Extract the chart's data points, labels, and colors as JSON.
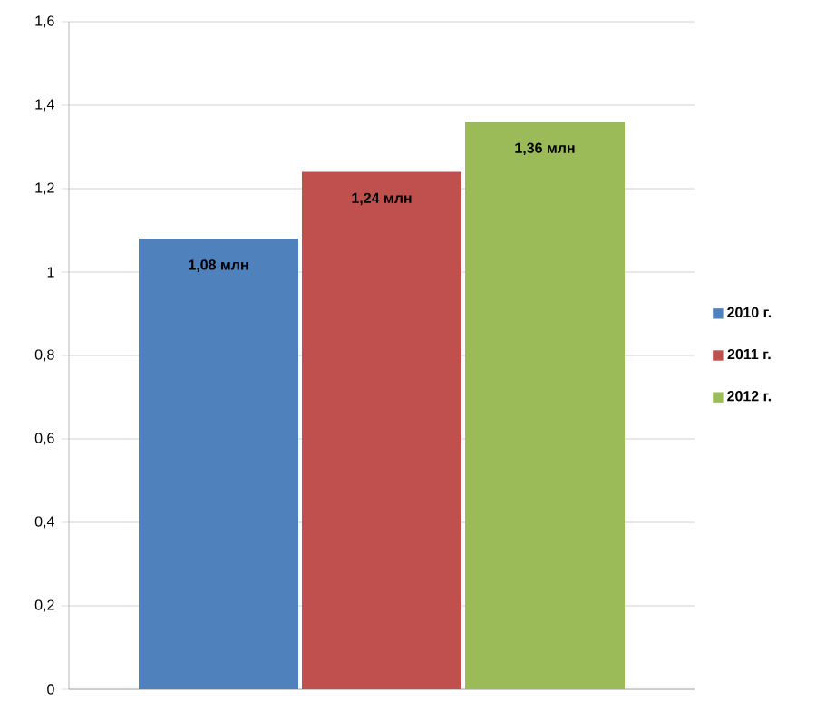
{
  "chart_data": {
    "type": "bar",
    "categories": [
      null
    ],
    "series": [
      {
        "name": "2010 г.",
        "color": "#4f81bd",
        "values": [
          1.08
        ],
        "value_labels": [
          "1,08 млн"
        ]
      },
      {
        "name": "2011 г.",
        "color": "#c0504d",
        "values": [
          1.24
        ],
        "value_labels": [
          "1,24 млн"
        ]
      },
      {
        "name": "2012 г.",
        "color": "#9bbb59",
        "values": [
          1.36
        ],
        "value_labels": [
          "1,36 млн"
        ]
      }
    ],
    "ylim": [
      0,
      1.6
    ],
    "yticks": [
      0,
      {
        "value": 0.2,
        "label": "0,2"
      },
      {
        "value": 0.4,
        "label": "0,4"
      },
      {
        "value": 0.6,
        "label": "0,6"
      },
      {
        "value": 0.8,
        "label": "0,8"
      },
      1,
      {
        "value": 1.2,
        "label": "1,2"
      },
      {
        "value": 1.4,
        "label": "1,4"
      },
      {
        "value": 1.6,
        "label": "1,6"
      }
    ],
    "grid": "y",
    "legend": "right"
  }
}
